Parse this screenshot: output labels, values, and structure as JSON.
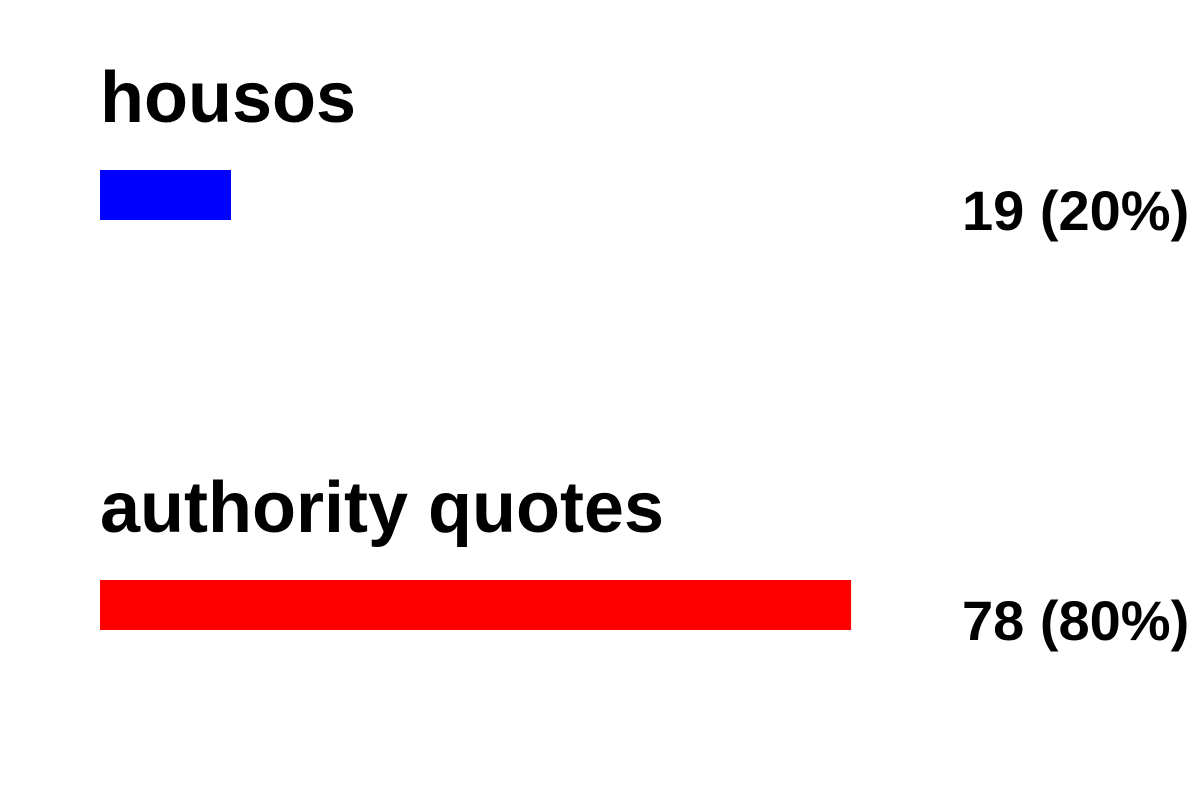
{
  "chart_data": {
    "type": "bar",
    "orientation": "horizontal",
    "categories": [
      "housos",
      "authority quotes"
    ],
    "values": [
      19,
      78
    ],
    "percents": [
      20,
      80
    ],
    "value_labels": [
      "19 (20%)",
      "78 (80%)"
    ],
    "colors": [
      "#0000ff",
      "#ff0000"
    ],
    "title": "",
    "xlabel": "",
    "ylabel": "",
    "grid": false
  }
}
